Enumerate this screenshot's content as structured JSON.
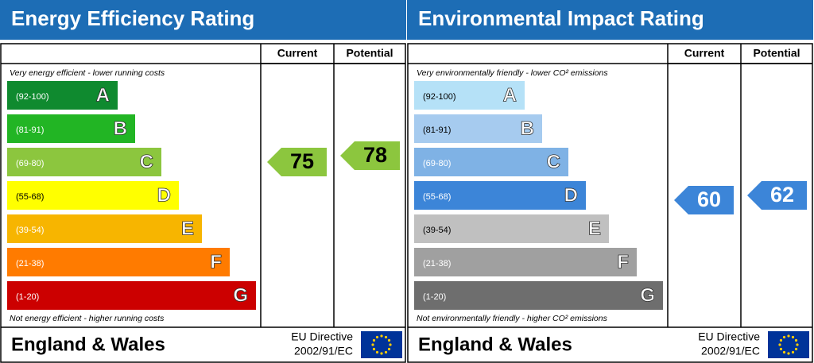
{
  "panels": [
    {
      "title": "Energy Efficiency Rating",
      "current_header": "Current",
      "potential_header": "Potential",
      "top_note": "Very energy efficient - lower running costs",
      "bottom_note": "Not energy efficient - higher running costs",
      "bands": [
        {
          "range": "(92-100)",
          "letter": "A",
          "color": "#0f8a2f",
          "label_color": "#ffffff"
        },
        {
          "range": "(81-91)",
          "letter": "B",
          "color": "#22b524",
          "label_color": "#ffffff"
        },
        {
          "range": "(69-80)",
          "letter": "C",
          "color": "#8cc63e",
          "label_color": "#ffffff"
        },
        {
          "range": "(55-68)",
          "letter": "D",
          "color": "#ffff00",
          "label_color": "#000000"
        },
        {
          "range": "(39-54)",
          "letter": "E",
          "color": "#f7b500",
          "label_color": "#ffffff"
        },
        {
          "range": "(21-38)",
          "letter": "F",
          "color": "#ff7b00",
          "label_color": "#ffffff"
        },
        {
          "range": "(1-20)",
          "letter": "G",
          "color": "#cc0000",
          "label_color": "#ffffff"
        }
      ],
      "current": {
        "value": 75,
        "color": "#8cc63e"
      },
      "potential": {
        "value": 78,
        "color": "#8cc63e"
      },
      "region": "England & Wales",
      "directive": [
        "EU Directive",
        "2002/91/EC"
      ]
    },
    {
      "title": "Environmental Impact Rating",
      "current_header": "Current",
      "potential_header": "Potential",
      "top_note": "Very environmentally friendly - lower CO² emissions",
      "bottom_note": "Not environmentally friendly - higher CO² emissions",
      "bands": [
        {
          "range": "(92-100)",
          "letter": "A",
          "color": "#b5e1f7",
          "label_color": "#000000"
        },
        {
          "range": "(81-91)",
          "letter": "B",
          "color": "#a6cbef",
          "label_color": "#000000"
        },
        {
          "range": "(69-80)",
          "letter": "C",
          "color": "#7fb2e5",
          "label_color": "#ffffff"
        },
        {
          "range": "(55-68)",
          "letter": "D",
          "color": "#3c85d8",
          "label_color": "#ffffff"
        },
        {
          "range": "(39-54)",
          "letter": "E",
          "color": "#c0c0c0",
          "label_color": "#000000"
        },
        {
          "range": "(21-38)",
          "letter": "F",
          "color": "#a0a0a0",
          "label_color": "#ffffff"
        },
        {
          "range": "(1-20)",
          "letter": "G",
          "color": "#6e6e6e",
          "label_color": "#ffffff"
        }
      ],
      "current": {
        "value": 60,
        "color": "#3c85d8"
      },
      "potential": {
        "value": 62,
        "color": "#3c85d8"
      },
      "region": "England & Wales",
      "directive": [
        "EU Directive",
        "2002/91/EC"
      ]
    }
  ]
}
